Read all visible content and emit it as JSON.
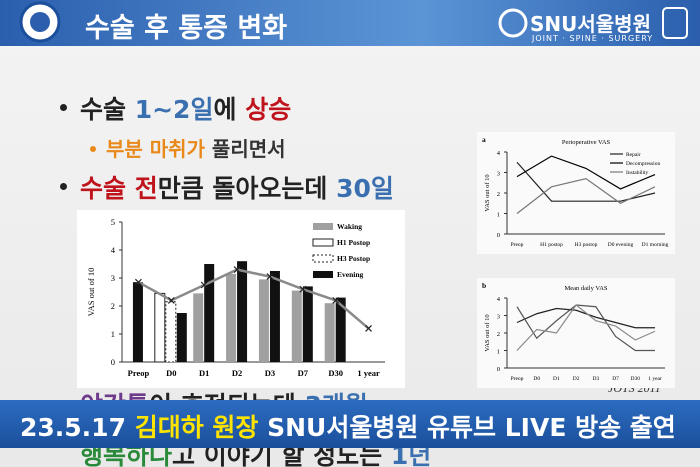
{
  "header": {
    "title": "수술 후 통증 변화",
    "logo": "SNU서울병원",
    "logo_sub": "JOINT · SPINE · SURGERY"
  },
  "bullets": [
    {
      "parts": [
        "수술 ",
        "1~2일",
        "에 ",
        "상승"
      ]
    },
    {
      "parts": [
        "부분 마취가",
        " 풀리면서"
      ]
    },
    {
      "parts": [
        "수술 전",
        "만큼 돌아오는데 ",
        "30일"
      ]
    },
    {
      "parts": [
        "야간통",
        "이 호전되는데 ",
        "3개월"
      ]
    },
    {
      "parts": [
        "행복하다",
        "고 이야기 할 정도는 ",
        "1년"
      ]
    }
  ],
  "source": "JOTS 2011",
  "banner": {
    "parts": [
      "23.5.17 ",
      "김대하 원장",
      " SNU서울병원 유튜브 LIVE 방송 출연"
    ]
  },
  "chart_data": [
    {
      "type": "bar",
      "ylabel": "VAS out of 10",
      "categories": [
        "Preop",
        "D0",
        "D1",
        "D2",
        "D3",
        "D7",
        "D30",
        "1 year"
      ],
      "ylim": [
        0,
        5
      ],
      "yticks": [
        0,
        1,
        2,
        3,
        4,
        5
      ],
      "series": [
        {
          "name": "Waking",
          "color": "#a0a0a0",
          "values": [
            null,
            null,
            2.45,
            3.15,
            2.95,
            2.55,
            2.1,
            null
          ]
        },
        {
          "name": "H1 Postop",
          "color": "#ffffff",
          "border": "#222222",
          "values": [
            null,
            2.45,
            null,
            null,
            null,
            null,
            null,
            null
          ]
        },
        {
          "name": "H3 Postop",
          "color": "#ffffff",
          "border": "#222222",
          "dashed": true,
          "values": [
            null,
            2.15,
            null,
            null,
            null,
            null,
            null,
            null
          ]
        },
        {
          "name": "Evening",
          "color": "#111111",
          "values": [
            2.85,
            1.75,
            3.5,
            3.6,
            3.25,
            2.7,
            2.3,
            null
          ]
        },
        {
          "type": "line",
          "color": "#8a8a8a",
          "marker": "x",
          "values": [
            2.85,
            2.2,
            2.75,
            3.3,
            3.05,
            2.6,
            2.2,
            1.2
          ]
        }
      ]
    },
    {
      "type": "line",
      "label": "a",
      "title": "Perioperative VAS",
      "ylabel": "VAS out of 10",
      "categories": [
        "Preop",
        "H1 postop",
        "H3 postop",
        "D0 evening",
        "D1 morning"
      ],
      "ylim": [
        0,
        4
      ],
      "yticks": [
        0,
        1,
        2,
        3,
        4
      ],
      "series": [
        {
          "name": "Repair",
          "color": "#222222",
          "values": [
            3.5,
            1.6,
            1.6,
            1.6,
            2.0
          ]
        },
        {
          "name": "Decompression",
          "color": "#000000",
          "values": [
            2.8,
            3.8,
            3.2,
            2.2,
            2.9
          ]
        },
        {
          "name": "Instability",
          "color": "#777777",
          "values": [
            1.0,
            2.3,
            2.7,
            1.5,
            2.3
          ]
        }
      ]
    },
    {
      "type": "line",
      "label": "b",
      "title": "Mean daily VAS",
      "ylabel": "VAS out of 10",
      "categories": [
        "Preop",
        "D0",
        "D1",
        "D2",
        "D3",
        "D7",
        "D30",
        "1 year"
      ],
      "ylim": [
        0,
        4
      ],
      "yticks": [
        0,
        1,
        2,
        3,
        4
      ],
      "series": [
        {
          "color": "#222222",
          "values": [
            2.6,
            3.1,
            3.4,
            3.3,
            2.9,
            2.6,
            2.3,
            2.3
          ]
        },
        {
          "color": "#555555",
          "values": [
            3.5,
            1.7,
            2.7,
            3.6,
            3.5,
            1.8,
            1.0,
            1.0
          ]
        },
        {
          "color": "#888888",
          "values": [
            1.0,
            2.2,
            2.0,
            3.6,
            2.7,
            2.4,
            1.6,
            2.1
          ]
        }
      ]
    }
  ]
}
